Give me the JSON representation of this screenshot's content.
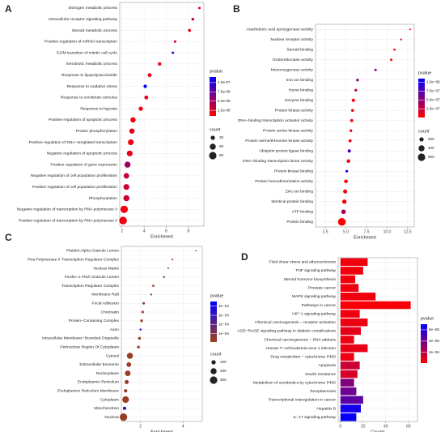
{
  "chart_data": [
    {
      "type": "dot",
      "label": "A",
      "categories": [
        "Estrogen metabolic process",
        "Intracellular receptor signaling pathway",
        "Steroid metabolic process",
        "Positive regulation of miRNA transcription",
        "G2/M transition of mitotic cell cycle",
        "Xenobiotic metabolic process",
        "Response to lipopolysaccharide",
        "Response to oxidative stress",
        "Response to xenobiotic stimulus",
        "Response to hypoxia",
        "Positive regulation of apoptotic process",
        "Protein phosphorylation",
        "Positive regulation of DNA−templated transcription",
        "Negative regulation of apoptotic process",
        "Positive regulation of gene expression",
        "Negative regulation of cell population proliferation",
        "Positive regulation of cell population proliferation",
        "Phosphorylation",
        "Negative regulation of transcription by RNA polymerase II",
        "Positive regulation of transcription by RNA polymerase II"
      ],
      "values": [
        9.0,
        8.4,
        8.1,
        6.8,
        6.6,
        5.4,
        4.5,
        4.1,
        4.2,
        3.7,
        3.0,
        2.9,
        2.8,
        2.7,
        2.5,
        2.4,
        2.4,
        2.4,
        2.2,
        2.1
      ],
      "counts": [
        10,
        12,
        14,
        10,
        10,
        20,
        25,
        20,
        25,
        30,
        45,
        45,
        55,
        55,
        60,
        50,
        55,
        60,
        90,
        95
      ],
      "pvalues": [
        2e-08,
        4e-08,
        2e-08,
        3e-08,
        9e-08,
        1.5e-08,
        2e-08,
        1.1e-07,
        2e-08,
        1.5e-08,
        1.5e-08,
        2e-08,
        1.5e-08,
        2e-08,
        5e-08,
        3.5e-08,
        3e-08,
        3e-08,
        1.5e-08,
        1.5e-08
      ],
      "xlabel": "Enrichment",
      "xlim": [
        1.8,
        9.4
      ],
      "xticks": [
        2,
        4,
        6,
        8
      ],
      "color_title": "pvalue",
      "colormap": [
        "#ff0000",
        "#0000ff"
      ],
      "plim": [
        1e-08,
        1.15e-07
      ],
      "pticks": [
        {
          "value": 1e-07,
          "label": "1.0e-07"
        },
        {
          "value": 7.5e-08,
          "label": "7.5e-08"
        },
        {
          "value": 5e-08,
          "label": "5.0e-08"
        },
        {
          "value": 2.5e-08,
          "label": "2.5e-08"
        }
      ],
      "size_title": "count",
      "size_ticks": [
        30,
        60,
        90
      ],
      "grid": true
    },
    {
      "type": "dot",
      "label": "B",
      "categories": [
        "Arachidonic acid epoxygenase activity",
        "Nuclear receptor activity",
        "Steroid binding",
        "Oxidoreductase activity",
        "Monooxygenase activity",
        "Iron ion binding",
        "Heme binding",
        "Enzyme binding",
        "Protein kinase activity",
        "DNA−binding transcription activator activity",
        "Protein serine kinase activity",
        "Protein serine/threonine kinase activity",
        "Ubiquitin protein ligase binding",
        "DNA−binding transcription factor activity",
        "Protein kinase binding",
        "Protein homodimerization activity",
        "Zinc ion binding",
        "Identical protein binding",
        "ATP binding",
        "Protein binding"
      ],
      "values": [
        12.8,
        11.7,
        10.9,
        10.5,
        8.6,
        6.4,
        6.2,
        5.9,
        5.8,
        5.7,
        5.6,
        5.5,
        5.4,
        5.3,
        5.1,
        5.0,
        4.9,
        4.8,
        4.7,
        4.5
      ],
      "counts": [
        30,
        40,
        50,
        60,
        60,
        80,
        80,
        120,
        90,
        100,
        80,
        100,
        110,
        140,
        70,
        150,
        180,
        200,
        220,
        650
      ],
      "pvalues": [
        5e-08,
        5e-08,
        5e-08,
        5e-08,
        5e-07,
        5.5e-07,
        3e-07,
        5e-08,
        1e-07,
        5e-08,
        1e-07,
        5e-08,
        8e-07,
        5e-08,
        1.05e-06,
        5e-08,
        5e-08,
        5e-08,
        4e-07,
        3e-08
      ],
      "xlabel": "Enrichment",
      "xlim": [
        1.3,
        13.3
      ],
      "xticks": [
        2.5,
        {
          "value": 5,
          "label": "5.0"
        },
        7.5,
        {
          "value": 10,
          "label": "10.0"
        },
        12.5
      ],
      "color_title": "pvalue",
      "colormap": [
        "#ff0000",
        "#0000ff"
      ],
      "plim": [
        1e-08,
        1.1e-06
      ],
      "pticks": [
        {
          "value": 1e-06,
          "label": "1.0e−06"
        },
        {
          "value": 7.5e-07,
          "label": "7.5e−07"
        },
        {
          "value": 5e-07,
          "label": "5.0e−07"
        },
        {
          "value": 2.5e-07,
          "label": "2.5e−07"
        }
      ],
      "size_title": "count",
      "size_ticks": [
        200,
        400,
        600
      ],
      "grid": true
    },
    {
      "type": "dot",
      "label": "C",
      "categories": [
        "Platelet Alpha Granule Lumen",
        "Rna Polymerase II Transcription Regulator Complex",
        "Nuclear Matrix",
        "Ficolin−1−Rich Granule Lumen",
        "Transcription Regulator Complex",
        "Membrane Raft",
        "Focal Adhesion",
        "Chromatin",
        "Protein−Containing Complex",
        "Axon",
        "Intracellular Membrane−Bounded Organelle",
        "Perinuclear Region Of Cytoplasm",
        "Cytosol",
        "Extracellular Exosome",
        "Nucleoplasm",
        "Endoplasmic Reticulum",
        "Endoplasmic Reticulum Membrane",
        "Cytoplasm",
        "Mitochondrion",
        "Nucleus"
      ],
      "values": [
        4.6,
        3.5,
        3.3,
        3.1,
        2.6,
        2.5,
        2.15,
        2.1,
        2.05,
        2.0,
        1.95,
        1.9,
        1.5,
        1.45,
        1.4,
        1.35,
        1.3,
        1.3,
        1.25,
        1.2
      ],
      "counts": [
        10,
        15,
        15,
        20,
        25,
        20,
        30,
        35,
        40,
        20,
        45,
        40,
        200,
        120,
        170,
        90,
        60,
        240,
        60,
        300
      ],
      "pvalues": [
        5e-05,
        3e-05,
        3e-05,
        0.00012,
        3e-05,
        3e-05,
        0.0001,
        3e-05,
        3e-05,
        0.00042,
        3e-05,
        3e-05,
        3e-05,
        3e-05,
        3e-05,
        5e-05,
        3e-05,
        3e-05,
        0.0003,
        3e-05
      ],
      "xlabel": "Enrichment",
      "xlim": [
        1.1,
        4.9
      ],
      "xticks": [
        2,
        4
      ],
      "color_title": "pvalue",
      "colormap": [
        "#a0401a",
        "#0000ff"
      ],
      "plim": [
        1e-05,
        0.00045
      ],
      "pticks": [
        {
          "value": 0.0004,
          "label": "4e−04"
        },
        {
          "value": 0.0003,
          "label": "3e−04"
        },
        {
          "value": 0.0002,
          "label": "2e−04"
        },
        {
          "value": 0.0001,
          "label": "1e−04"
        }
      ],
      "size_title": "count",
      "size_ticks": [
        100,
        200,
        300
      ],
      "grid": true
    },
    {
      "type": "bar",
      "label": "D",
      "categories": [
        "Fluid shear stress and atherosclerosis",
        "TNF signaling pathway",
        "Steroid hormone biosynthesis",
        "Prostate cancer",
        "MAPK signaling pathway",
        "Pathways in cancer",
        "HIF−1 signaling pathway",
        "Chemical carcinogenesis − receptor activation",
        "AGE−RAGE signaling pathway in diabetic complications",
        "Chemical carcinogenesis − DNA adducts",
        "Human T−cell leukemia virus 1 infection",
        "Drug metabolism − cytochrome P450",
        "Apoptosis",
        "Insulin resistance",
        "Metabolism of xenobiotics by cytochrome P450",
        "Toxoplasmosis",
        "Transcriptional misregulation in cancer",
        "Hepatitis B",
        "IL−17 signaling pathway"
      ],
      "values": [
        24,
        20,
        13,
        16,
        31,
        62,
        17,
        24,
        18,
        12,
        24,
        12,
        17,
        15,
        12,
        14,
        20,
        18,
        14
      ],
      "pvalues": [
        5e-07,
        5e-07,
        5e-07,
        5e-07,
        5e-07,
        3e-07,
        5e-07,
        6e-07,
        8e-07,
        6e-07,
        7e-07,
        6e-07,
        1.5e-06,
        1.2e-06,
        3.5e-06,
        4e-06,
        4.5e-06,
        6.5e-06,
        6.8e-06
      ],
      "xlabel": "Counts",
      "xlim": [
        -2,
        68
      ],
      "xticks": [
        0,
        20,
        40,
        60
      ],
      "color_title": "pvalue",
      "colormap": [
        "#ff0000",
        "#0000ff"
      ],
      "plim": [
        1e-07,
        7e-06
      ],
      "pticks": [
        {
          "value": 6e-06,
          "label": "6e−06"
        },
        {
          "value": 4e-06,
          "label": "4e−06"
        },
        {
          "value": 2e-06,
          "label": "2e−06"
        }
      ],
      "grid": true
    }
  ]
}
